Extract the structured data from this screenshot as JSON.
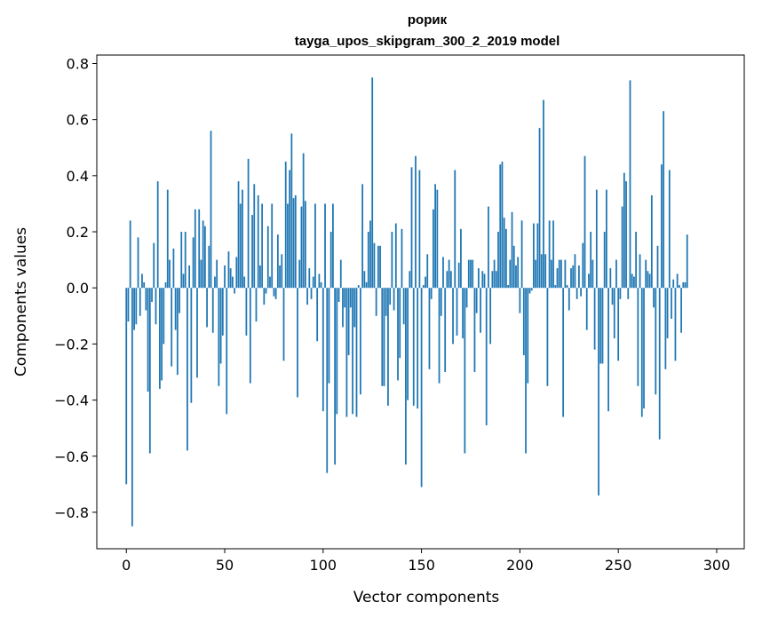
{
  "chart_data": {
    "type": "bar",
    "title": "рорик",
    "subtitle": "tayga_upos_skipgram_300_2_2019 model",
    "xlabel": "Vector components",
    "ylabel": "Components values",
    "xlim": [
      -15,
      314
    ],
    "ylim": [
      -0.93,
      0.83
    ],
    "xticks": [
      0,
      50,
      100,
      150,
      200,
      250,
      300
    ],
    "yticks": [
      -0.8,
      -0.6,
      -0.4,
      -0.2,
      0.0,
      0.2,
      0.4,
      0.6,
      0.8
    ],
    "ytick_labels": [
      "−0.8",
      "−0.6",
      "−0.4",
      "−0.2",
      "0.0",
      "0.2",
      "0.4",
      "0.6",
      "0.8"
    ],
    "grid": false,
    "bar_color": "#1f77b4",
    "values": [
      -0.7,
      -0.12,
      0.24,
      -0.85,
      -0.15,
      -0.13,
      0.18,
      -0.1,
      0.05,
      0.02,
      -0.08,
      -0.37,
      -0.59,
      -0.05,
      0.16,
      -0.13,
      0.38,
      -0.36,
      -0.33,
      -0.2,
      0.02,
      0.35,
      0.1,
      -0.28,
      0.14,
      -0.15,
      -0.31,
      -0.09,
      0.2,
      0.05,
      0.2,
      -0.58,
      0.08,
      -0.41,
      0.18,
      0.28,
      -0.32,
      0.28,
      0.1,
      0.24,
      0.22,
      -0.14,
      0.15,
      0.56,
      -0.16,
      0.04,
      0.1,
      -0.35,
      -0.27,
      -0.17,
      0.08,
      -0.45,
      0.13,
      0.07,
      0.04,
      -0.02,
      0.11,
      0.38,
      0.3,
      0.35,
      0.04,
      -0.17,
      0.46,
      -0.34,
      0.26,
      0.37,
      -0.12,
      0.33,
      0.08,
      0.3,
      -0.06,
      -0.02,
      0.22,
      0.04,
      0.3,
      -0.03,
      -0.04,
      0.19,
      0.08,
      0.12,
      -0.26,
      0.45,
      0.3,
      0.42,
      0.55,
      0.32,
      0.33,
      -0.39,
      0.1,
      0.29,
      0.48,
      0.31,
      -0.06,
      0.07,
      -0.04,
      0.04,
      0.3,
      -0.19,
      0.05,
      0.02,
      -0.44,
      0.3,
      -0.66,
      -0.34,
      0.2,
      0.3,
      -0.63,
      -0.45,
      -0.05,
      0.1,
      -0.14,
      -0.07,
      -0.46,
      -0.24,
      -0.07,
      -0.45,
      -0.14,
      -0.46,
      0.01,
      -0.38,
      0.37,
      0.06,
      0.02,
      0.2,
      0.24,
      0.75,
      0.16,
      -0.1,
      0.15,
      0.15,
      -0.35,
      -0.35,
      -0.1,
      -0.42,
      -0.06,
      0.2,
      -0.08,
      0.23,
      -0.33,
      -0.25,
      0.21,
      -0.13,
      -0.63,
      -0.4,
      0.06,
      0.43,
      -0.42,
      0.47,
      -0.43,
      0.42,
      -0.71,
      0.01,
      0.04,
      0.12,
      -0.29,
      -0.04,
      0.28,
      0.37,
      0.35,
      -0.34,
      -0.1,
      0.11,
      -0.3,
      0.06,
      0.1,
      0.06,
      -0.2,
      0.42,
      -0.17,
      0.09,
      0.21,
      -0.18,
      -0.59,
      -0.07,
      0.1,
      0.1,
      0.1,
      -0.3,
      -0.09,
      0.07,
      -0.16,
      0.06,
      0.05,
      -0.49,
      0.29,
      -0.2,
      0.06,
      0.1,
      0.06,
      0.2,
      0.44,
      0.45,
      0.25,
      0.21,
      0.01,
      0.1,
      0.27,
      0.15,
      0.08,
      0.11,
      -0.09,
      0.24,
      -0.24,
      -0.59,
      -0.34,
      -0.02,
      -0.01,
      0.23,
      0.1,
      0.23,
      0.57,
      0.12,
      0.67,
      0.12,
      -0.35,
      0.24,
      0.1,
      0.24,
      0.01,
      0.07,
      0.1,
      0.1,
      -0.46,
      0.1,
      0.01,
      -0.08,
      0.07,
      0.08,
      0.12,
      -0.04,
      0.08,
      -0.03,
      0.16,
      0.47,
      -0.15,
      0.05,
      0.2,
      0.1,
      -0.22,
      0.35,
      -0.74,
      -0.27,
      -0.27,
      0.2,
      0.35,
      -0.44,
      0.07,
      -0.06,
      -0.18,
      0.1,
      -0.26,
      -0.04,
      0.29,
      0.41,
      0.38,
      -0.04,
      0.74,
      0.05,
      0.04,
      0.2,
      -0.35,
      0.12,
      -0.46,
      -0.43,
      0.1,
      0.06,
      0.05,
      0.33,
      -0.07,
      -0.38,
      0.15,
      -0.54,
      0.44,
      0.63,
      -0.29,
      -0.18,
      0.42,
      -0.11,
      0.03,
      -0.26,
      0.05,
      0.01,
      -0.16,
      0.02,
      0.02,
      0.19
    ]
  }
}
